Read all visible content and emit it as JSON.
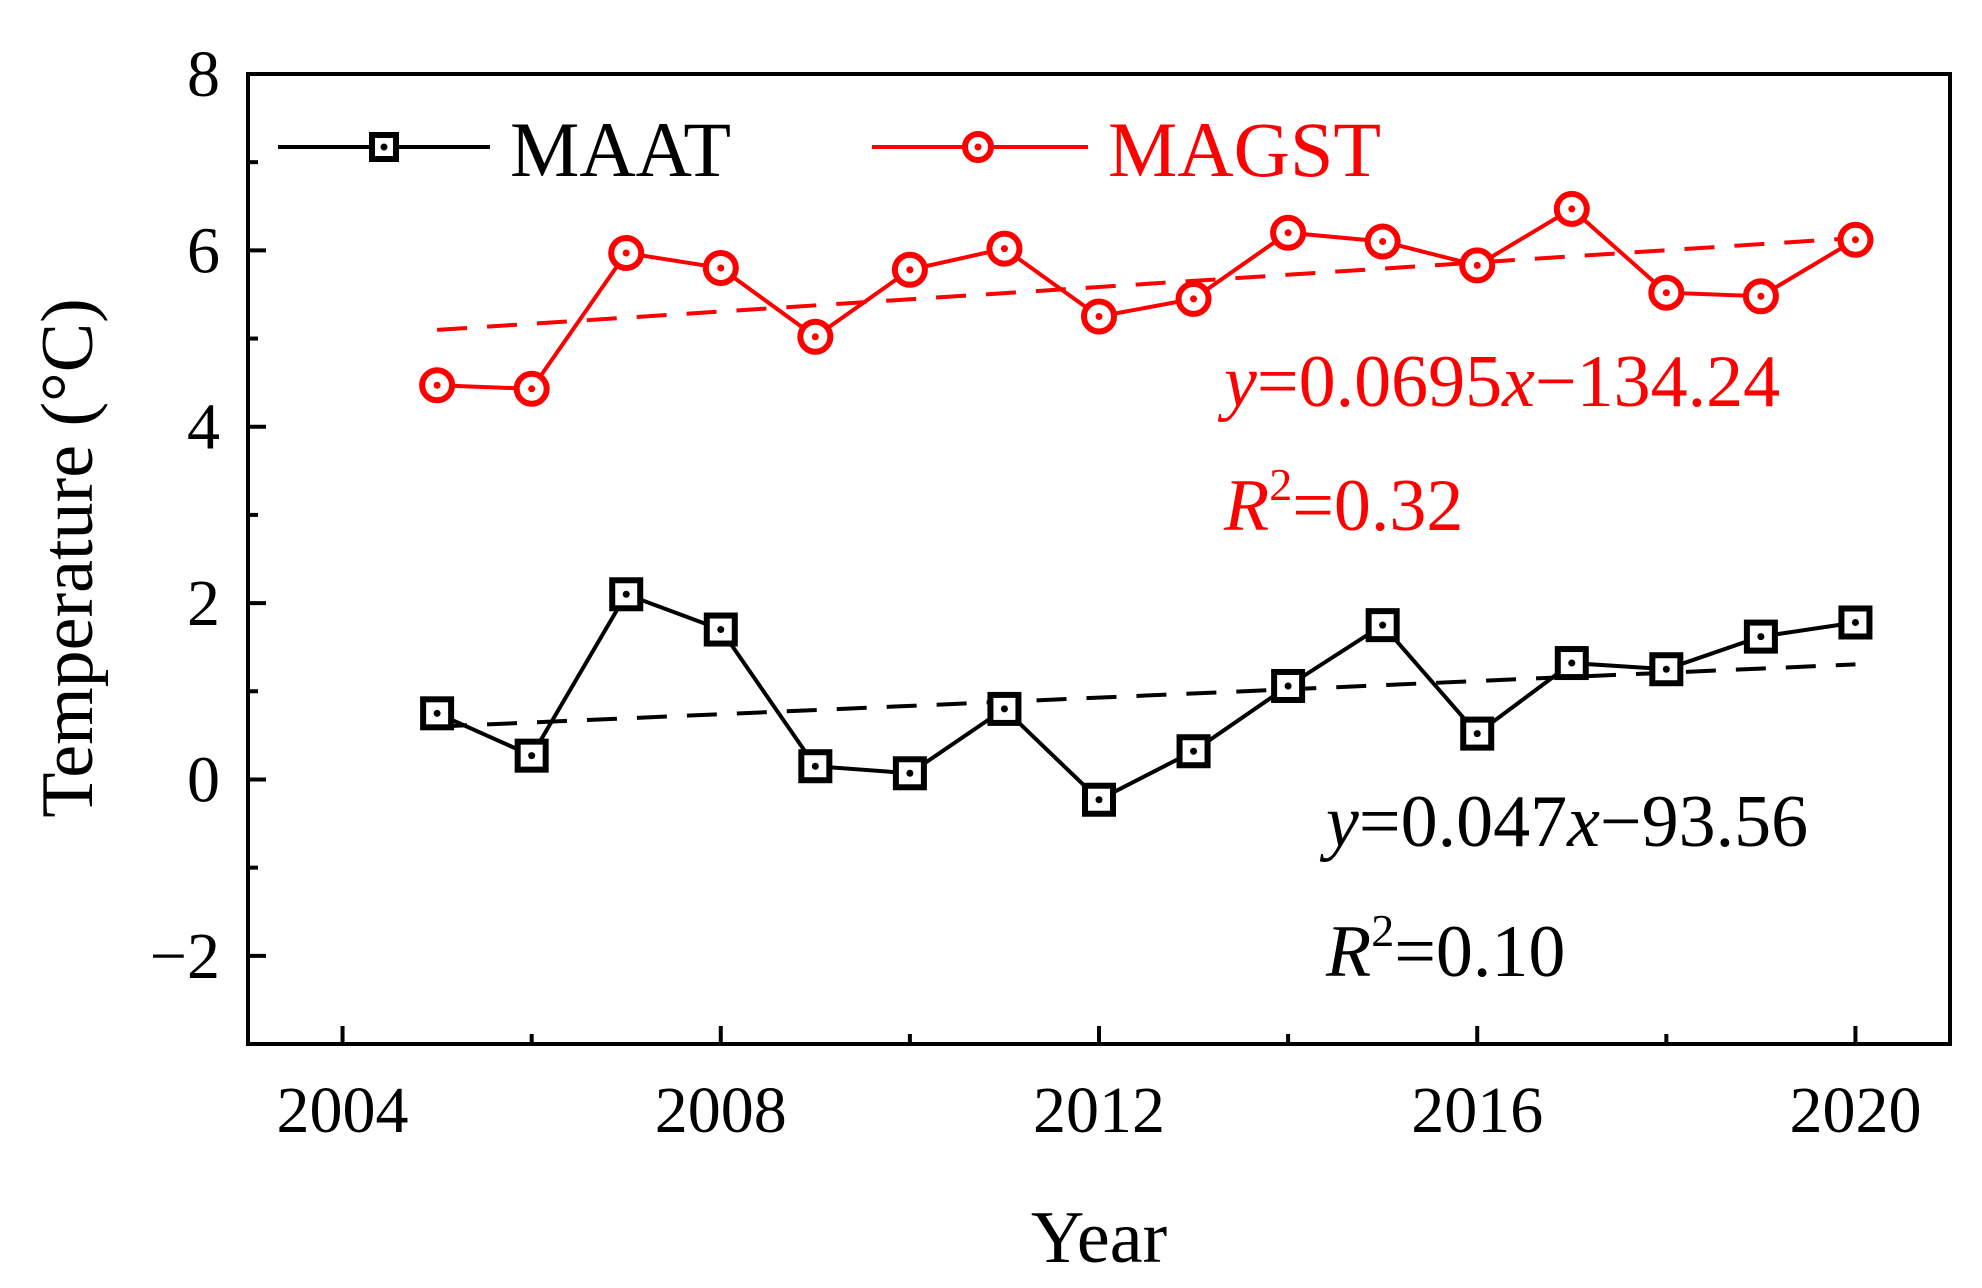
{
  "chart_data": {
    "type": "line",
    "title": "",
    "xlabel": "Year",
    "ylabel": "Temperature (°C)",
    "xlim": [
      2003,
      2021
    ],
    "ylim": [
      -3,
      8
    ],
    "xticks": [
      2004,
      2008,
      2012,
      2016,
      2020
    ],
    "yticks": [
      -2,
      0,
      2,
      4,
      6,
      8
    ],
    "xtick_labels": [
      "2004",
      "2008",
      "2012",
      "2016",
      "2020"
    ],
    "ytick_labels": [
      "−2",
      "0",
      "2",
      "4",
      "6",
      "8"
    ],
    "x": [
      2005,
      2006,
      2007,
      2008,
      2009,
      2010,
      2011,
      2012,
      2013,
      2014,
      2015,
      2016,
      2017,
      2018,
      2019,
      2020
    ],
    "series": [
      {
        "name": "MAAT",
        "color": "#000000",
        "marker": "square",
        "values": [
          0.75,
          0.27,
          2.1,
          1.7,
          0.15,
          0.07,
          0.8,
          -0.23,
          0.32,
          1.06,
          1.75,
          0.52,
          1.32,
          1.25,
          1.62,
          1.78
        ],
        "trend": {
          "slope": 0.047,
          "intercept": -93.56,
          "equation_prefix": "y",
          "equation_mid": "=0.047",
          "equation_x": "x",
          "equation_suffix": "−93.56",
          "r2_symbol": "R",
          "r2_exp": "2",
          "r2_value": "=0.10"
        }
      },
      {
        "name": "MAGST",
        "color": "#ff0000",
        "marker": "circle",
        "values": [
          4.47,
          4.43,
          5.97,
          5.8,
          5.02,
          5.78,
          6.02,
          5.25,
          5.45,
          6.2,
          6.1,
          5.83,
          6.47,
          5.52,
          5.48,
          6.12
        ],
        "trend": {
          "slope": 0.0695,
          "intercept": -134.24,
          "equation_prefix": "y",
          "equation_mid": "=0.0695",
          "equation_x": "x",
          "equation_suffix": "−134.24",
          "r2_symbol": "R",
          "r2_exp": "2",
          "r2_value": "=0.32"
        }
      }
    ],
    "legend_position": "top-left",
    "grid": false
  }
}
